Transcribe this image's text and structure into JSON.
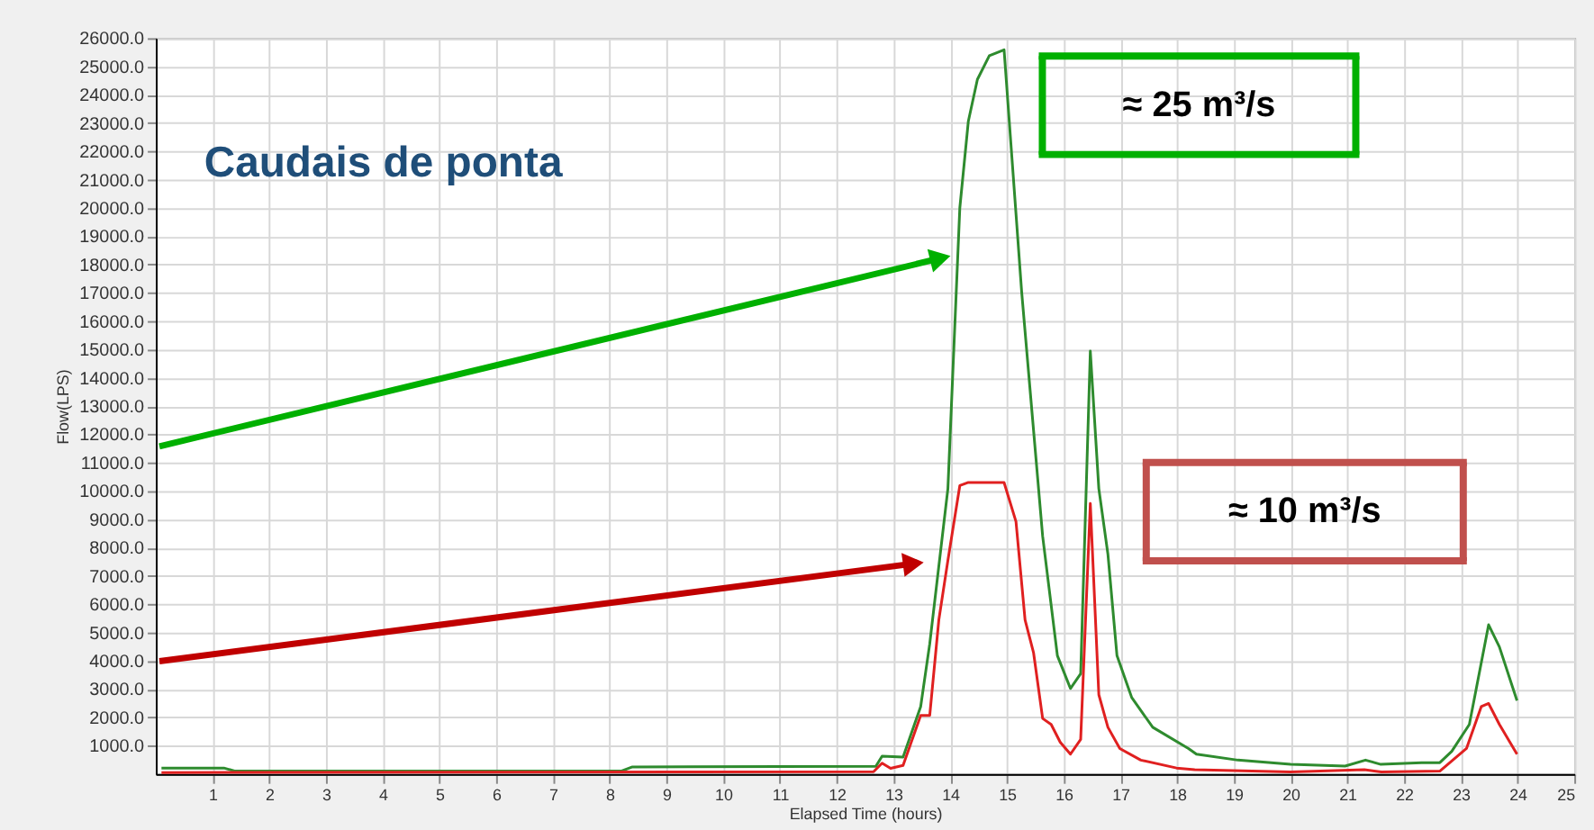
{
  "chart_data": {
    "type": "line",
    "title": "Caudais de ponta",
    "xlabel": "Elapsed Time (hours)",
    "ylabel": "Flow(LPS)",
    "xlim": [
      0,
      25
    ],
    "xticks": [
      1,
      2,
      3,
      4,
      5,
      6,
      7,
      8,
      9,
      10,
      11,
      12,
      13,
      14,
      15,
      16,
      17,
      18,
      19,
      20,
      21,
      22,
      23,
      24,
      25
    ],
    "ylim": [
      0,
      26000
    ],
    "yticks": [
      {
        "value": 1000,
        "label": "1000.0"
      },
      {
        "value": 2000,
        "label": "2000.0"
      },
      {
        "value": 3000,
        "label": "3000.0"
      },
      {
        "value": 4000,
        "label": "4000.0"
      },
      {
        "value": 5000,
        "label": "5000.0"
      },
      {
        "value": 6000,
        "label": "6000.0"
      },
      {
        "value": 7000,
        "label": "7000.0"
      },
      {
        "value": 8000,
        "label": "8000.0"
      },
      {
        "value": 9000,
        "label": "9000.0"
      },
      {
        "value": 10000,
        "label": "10000.0"
      },
      {
        "value": 11000,
        "label": "11000.0"
      },
      {
        "value": 12000,
        "label": "12000.0"
      },
      {
        "value": 13000,
        "label": "13000.0"
      },
      {
        "value": 14000,
        "label": "14000.0"
      },
      {
        "value": 15000,
        "label": "15000.0"
      },
      {
        "value": 16000,
        "label": "16000.0"
      },
      {
        "value": 17000,
        "label": "17000.0"
      },
      {
        "value": 18000,
        "label": "18000.0"
      },
      {
        "value": 19000,
        "label": "19000.0"
      },
      {
        "value": 20000,
        "label": "20000.0"
      },
      {
        "value": 21000,
        "label": "21000.0"
      },
      {
        "value": 22000,
        "label": "22000.0"
      },
      {
        "value": 23000,
        "label": "23000.0"
      },
      {
        "value": 24000,
        "label": "24000.0"
      },
      {
        "value": 25000,
        "label": "25000.0"
      },
      {
        "value": 26000,
        "label": "26000.0"
      }
    ],
    "grid": true,
    "legend": false,
    "marker": "none",
    "line_style": "solid",
    "series": [
      {
        "color": "#2e8b2e",
        "x": [
          0.1,
          1.2,
          1.4,
          8.2,
          8.4,
          12.69,
          12.8,
          13.17,
          13.48,
          13.64,
          13.96,
          14.17,
          14.32,
          14.48,
          14.69,
          14.95,
          15.26,
          15.63,
          15.89,
          16.12,
          16.3,
          16.47,
          16.62,
          16.78,
          16.94,
          17.2,
          17.57,
          18.2,
          18.34,
          19.07,
          20.0,
          20.96,
          21.32,
          21.59,
          22.31,
          22.63,
          22.84,
          23.15,
          23.49,
          23.68,
          23.99
        ],
        "values": [
          210,
          210,
          100,
          100,
          250,
          270,
          630,
          600,
          2380,
          4600,
          10080,
          20000,
          23060,
          24540,
          25380,
          25590,
          17040,
          8400,
          4180,
          3020,
          3540,
          14940,
          10080,
          7770,
          4180,
          2700,
          1650,
          900,
          700,
          490,
          340,
          280,
          490,
          340,
          400,
          400,
          800,
          1750,
          5270,
          4490,
          2590
        ]
      },
      {
        "color": "#e02020",
        "x": [
          0.1,
          12.65,
          12.8,
          12.95,
          13.17,
          13.48,
          13.64,
          13.8,
          13.96,
          14.17,
          14.32,
          14.95,
          15.16,
          15.32,
          15.47,
          15.63,
          15.78,
          15.94,
          16.12,
          16.3,
          16.47,
          16.62,
          16.78,
          16.99,
          17.36,
          17.99,
          18.31,
          20.0,
          21.3,
          21.6,
          22.63,
          23.1,
          23.36,
          23.49,
          23.68,
          23.99
        ],
        "values": [
          50,
          80,
          380,
          200,
          300,
          2070,
          2070,
          5440,
          7550,
          10190,
          10300,
          10300,
          8920,
          5440,
          4280,
          1960,
          1750,
          1120,
          700,
          1220,
          9560,
          2800,
          1650,
          900,
          490,
          210,
          150,
          70,
          150,
          70,
          100,
          900,
          2380,
          2490,
          1750,
          700
        ]
      }
    ],
    "annotations": [
      "≈ 25 m³/s",
      "≈ 10 m³/s"
    ]
  }
}
